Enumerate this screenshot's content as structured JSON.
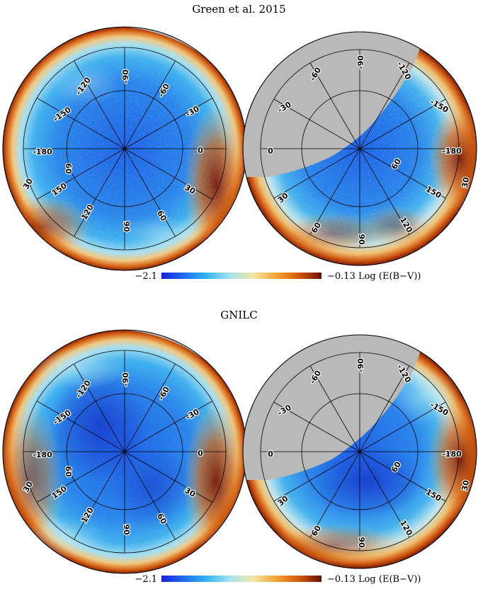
{
  "panels": [
    {
      "id": "top",
      "title": "Green et al. 2015"
    },
    {
      "id": "bottom",
      "title": "GNILC"
    }
  ],
  "colorbar": {
    "min_label": "−2.1",
    "max_label": "−0.13 Log (E(B−V))",
    "stops": [
      "#1a1fd8",
      "#1f6ff0",
      "#35b6f2",
      "#a6e4f0",
      "#f2e6a6",
      "#f5a534",
      "#d45a0b",
      "#6a1004"
    ]
  },
  "map_colors": {
    "mask": "#b9b9b9",
    "low": "#1e62e6",
    "mid": "#35a8ee",
    "high": "#f2c070",
    "edge": "#a83008"
  },
  "grid_labels": {
    "left": [
      {
        "name": "lon--180",
        "text": "-180"
      },
      {
        "name": "lon--150",
        "text": "-150"
      },
      {
        "name": "lon--120",
        "text": "-120"
      },
      {
        "name": "lon--90",
        "text": "-90"
      },
      {
        "name": "lon--60",
        "text": "-60"
      },
      {
        "name": "lon--30",
        "text": "-30"
      },
      {
        "name": "lon-0",
        "text": "0"
      },
      {
        "name": "lat-30-right",
        "text": "30"
      },
      {
        "name": "lat-60-low",
        "text": "60"
      },
      {
        "name": "lat-90-low",
        "text": "90"
      },
      {
        "name": "lon-120",
        "text": "120"
      },
      {
        "name": "lon-150",
        "text": "150"
      },
      {
        "name": "lat-60-left",
        "text": "60"
      },
      {
        "name": "lat-30-left",
        "text": "30"
      }
    ],
    "right": [
      {
        "name": "lon-0",
        "text": "0"
      },
      {
        "name": "lon--30",
        "text": "-30"
      },
      {
        "name": "lon--60",
        "text": "-60"
      },
      {
        "name": "lon--90",
        "text": "-90"
      },
      {
        "name": "lon--120",
        "text": "-120"
      },
      {
        "name": "lon--150",
        "text": "-150"
      },
      {
        "name": "lon--180",
        "text": "-180"
      },
      {
        "name": "lat-30-right",
        "text": "30"
      },
      {
        "name": "lon-60",
        "text": "60"
      },
      {
        "name": "lon-150",
        "text": "150"
      },
      {
        "name": "lon-120",
        "text": "120"
      },
      {
        "name": "lat-90-low",
        "text": "90"
      },
      {
        "name": "lat-60-low",
        "text": "60"
      },
      {
        "name": "lat-30-low",
        "text": "30"
      }
    ]
  }
}
